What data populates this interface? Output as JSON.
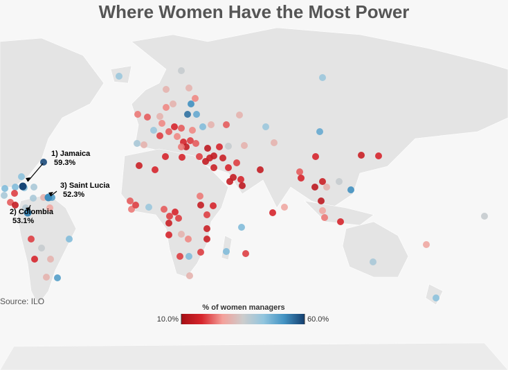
{
  "chart_data": {
    "type": "map",
    "title": "Where Women Have the Most Power",
    "source": "Source: ILO",
    "legend": {
      "title": "% of women managers",
      "min": {
        "value": 10,
        "label": "10.0%"
      },
      "max": {
        "value": 60,
        "label": "60.0%"
      },
      "colors": [
        "#a50f15",
        "#d7262d",
        "#f4a09a",
        "#cccccc",
        "#92c5de",
        "#4393c3",
        "#143f6f"
      ]
    },
    "annotations": [
      {
        "label": "1) Jamaica",
        "value": 59.3,
        "value_label": "59.3%"
      },
      {
        "label": "2) Colombia",
        "value": 53.1,
        "value_label": "53.1%"
      },
      {
        "label": "3) Saint Lucia",
        "value": 52.3,
        "value_label": "52.3%"
      }
    ],
    "values": [
      42,
      42,
      36,
      30,
      30,
      25,
      30,
      24,
      22,
      30,
      25,
      52,
      55,
      48,
      45,
      25,
      22,
      18,
      22,
      25,
      42,
      20,
      25,
      18,
      15,
      20,
      24,
      22,
      30,
      22,
      30,
      42,
      48,
      30,
      30,
      36,
      18,
      14,
      16,
      15,
      15,
      16,
      16,
      18,
      20,
      15,
      18,
      15,
      14,
      15,
      22,
      18,
      18,
      14,
      16,
      30,
      36,
      52,
      16,
      18,
      14,
      24,
      28,
      18,
      18,
      28,
      36,
      28,
      40,
      44,
      40,
      30,
      16,
      18,
      18,
      18,
      20,
      22,
      24,
      42,
      20,
      22,
      20,
      18,
      16,
      20,
      24,
      15,
      18,
      20,
      30,
      18,
      25,
      16,
      16,
      45,
      45,
      20,
      20,
      45,
      20,
      30,
      45,
      20,
      36,
      18,
      30,
      30,
      50,
      59,
      44,
      44,
      40,
      50,
      45,
      45,
      20,
      40,
      22,
      15,
      40,
      30,
      28,
      38
    ]
  }
}
